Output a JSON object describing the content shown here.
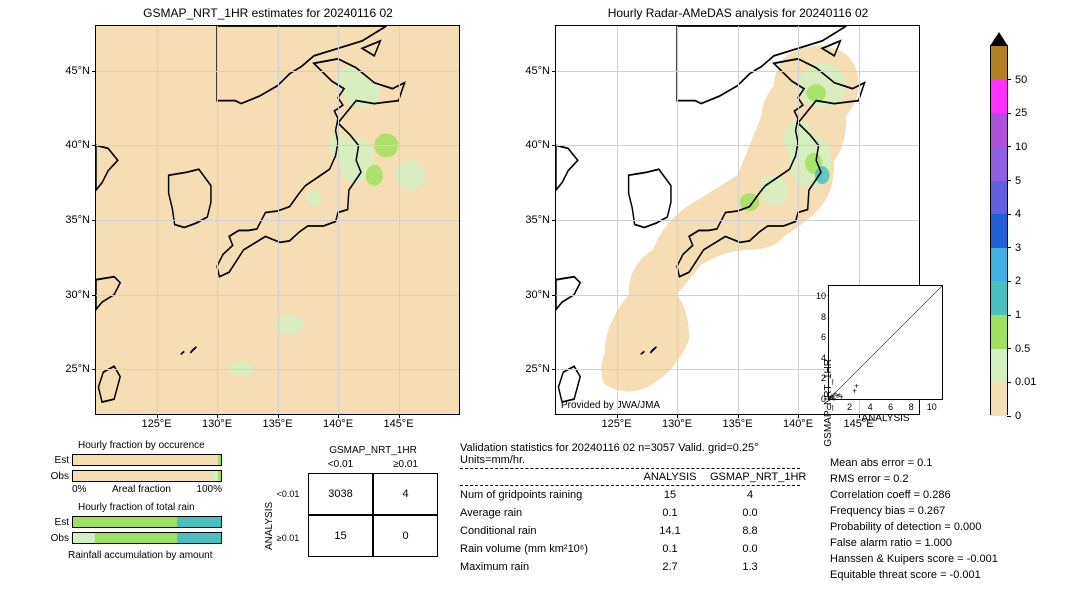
{
  "left_map": {
    "title": "GSMAP_NRT_1HR estimates for 20240116 02",
    "x_ticks": [
      "125°E",
      "130°E",
      "135°E",
      "140°E",
      "145°E"
    ],
    "y_ticks": [
      "25°N",
      "30°N",
      "35°N",
      "40°N",
      "45°N"
    ],
    "xlim": [
      120,
      150
    ],
    "ylim": [
      22,
      48
    ],
    "bg_color": "#f5deb3",
    "grid_color": "#d0d0d0"
  },
  "right_map": {
    "title": "Hourly Radar-AMeDAS analysis for 20240116 02",
    "x_ticks": [
      "125°E",
      "130°E",
      "135°E",
      "140°E",
      "145°E"
    ],
    "y_ticks": [
      "25°N",
      "30°N",
      "35°N",
      "40°N",
      "45°N"
    ],
    "xlim": [
      120,
      150
    ],
    "ylim": [
      22,
      48
    ],
    "bg_color": "#ffffff",
    "grid_color": "#d0d0d0",
    "provided_by": "Provided by JWA/JMA"
  },
  "colorbar": {
    "ticks": [
      "0",
      "0.01",
      "0.5",
      "1",
      "2",
      "3",
      "4",
      "5",
      "10",
      "25",
      "50"
    ],
    "colors": [
      "#f5deb3",
      "#d4f0c0",
      "#a0e060",
      "#4ac0c0",
      "#40b0e0",
      "#2060d8",
      "#6060e0",
      "#9060e0",
      "#b050d8",
      "#ff30ff",
      "#b08020"
    ],
    "over_arrow_color": "#000000"
  },
  "scatter": {
    "xlabel": "ANALYSIS",
    "ylabel": "GSMAP_NRT_1HR",
    "lim": [
      0,
      11
    ],
    "ticks": [
      0,
      2,
      4,
      6,
      8,
      10
    ],
    "points": [
      [
        0.1,
        0.1
      ],
      [
        0.2,
        0.1
      ],
      [
        0.3,
        0.3
      ],
      [
        0.4,
        0.2
      ],
      [
        0.5,
        0.0
      ],
      [
        0.6,
        0.5
      ],
      [
        0.8,
        0.3
      ],
      [
        1.0,
        0.4
      ],
      [
        1.2,
        0.2
      ],
      [
        2.5,
        0.8
      ],
      [
        2.7,
        1.3
      ]
    ]
  },
  "bars": {
    "occurrence_title": "Hourly fraction by occurence",
    "totalrain_title": "Hourly fraction of total rain",
    "accum_title": "Rainfall accumulation by amount",
    "xlabel_left": "0%",
    "xlabel_mid": "Areal fraction",
    "xlabel_right": "100%",
    "occurrence": {
      "Est": [
        {
          "c": "#f5deb3",
          "w": 0.98
        },
        {
          "c": "#a0e060",
          "w": 0.02
        }
      ],
      "Obs": [
        {
          "c": "#f5deb3",
          "w": 0.95
        },
        {
          "c": "#d4f0c0",
          "w": 0.03
        },
        {
          "c": "#a0e060",
          "w": 0.02
        }
      ]
    },
    "totalrain": {
      "Est": [
        {
          "c": "#a0e060",
          "w": 0.7
        },
        {
          "c": "#4ac0c0",
          "w": 0.3
        }
      ],
      "Obs": [
        {
          "c": "#d4f0c0",
          "w": 0.15
        },
        {
          "c": "#a0e060",
          "w": 0.55
        },
        {
          "c": "#4ac0c0",
          "w": 0.3
        }
      ]
    }
  },
  "contingency": {
    "col_title": "GSMAP_NRT_1HR",
    "row_title": "ANALYSIS",
    "col_headers": [
      "<0.01",
      "≥0.01"
    ],
    "row_headers": [
      "<0.01",
      "≥0.01"
    ],
    "cells": [
      [
        "3038",
        "4"
      ],
      [
        "15",
        "0"
      ]
    ]
  },
  "stats": {
    "title": "Validation statistics for 20240116 02  n=3057 Valid. grid=0.25°  Units=mm/hr.",
    "col1": "ANALYSIS",
    "col2": "GSMAP_NRT_1HR",
    "rows": [
      {
        "name": "Num of gridpoints raining",
        "a": "15",
        "b": "4"
      },
      {
        "name": "Average rain",
        "a": "0.1",
        "b": "0.0"
      },
      {
        "name": "Conditional rain",
        "a": "14.1",
        "b": "8.8"
      },
      {
        "name": "Rain volume (mm km²10⁶)",
        "a": "0.1",
        "b": "0.0"
      },
      {
        "name": "Maximum rain",
        "a": "2.7",
        "b": "1.3"
      }
    ]
  },
  "scores": {
    "rows": [
      "Mean abs error =    0.1",
      "RMS error =    0.2",
      "Correlation coeff =  0.286",
      "Frequency bias =  0.267",
      "Probability of detection =  0.000",
      "False alarm ratio =  1.000",
      "Hanssen & Kuipers score = -0.001",
      "Equitable threat score = -0.001"
    ]
  }
}
